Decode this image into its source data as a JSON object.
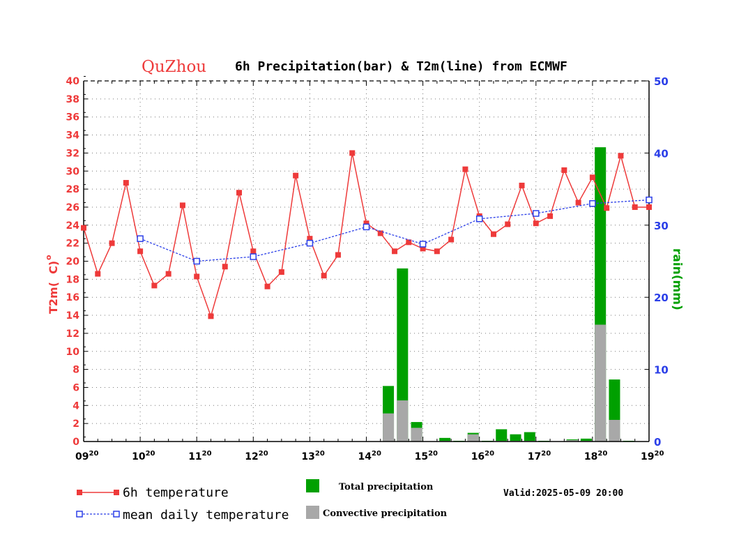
{
  "title": {
    "city": "QuZhou",
    "text": "6h Precipitation(bar) & T2m(line) from ECMWF"
  },
  "axes": {
    "left_label": "T2m(  C)",
    "right_label": "rain(mm)",
    "x_ticks": [
      {
        "day": "09",
        "hour": "20"
      },
      {
        "day": "10",
        "hour": "20"
      },
      {
        "day": "11",
        "hour": "20"
      },
      {
        "day": "12",
        "hour": "20"
      },
      {
        "day": "13",
        "hour": "20"
      },
      {
        "day": "14",
        "hour": "20"
      },
      {
        "day": "15",
        "hour": "20"
      },
      {
        "day": "16",
        "hour": "20"
      },
      {
        "day": "17",
        "hour": "20"
      },
      {
        "day": "18",
        "hour": "20"
      },
      {
        "day": "19",
        "hour": "20"
      }
    ]
  },
  "legend": {
    "temp6h": "6h temperature",
    "mean_daily": "mean daily temperature",
    "total_precip": "Total precipitation",
    "conv_precip": "Convective precipitation",
    "valid": "Valid:2025-05-09 20:00"
  },
  "colors": {
    "temp": "#ee3a3a",
    "mean": "#2b3fe8",
    "total": "#00a000",
    "conv": "#a8a8a8"
  },
  "chart_data": {
    "type": "bar+line",
    "title": "QuZhou 6h Precipitation(bar) & T2m(line) from ECMWF",
    "x_unit": "days since 09 20:00 (step 0.25 = 6h)",
    "xlim": [
      0,
      10
    ],
    "ylim_left": [
      0,
      40
    ],
    "ylim_right": [
      0,
      50
    ],
    "y_ticks_left": [
      0,
      2,
      4,
      6,
      8,
      10,
      12,
      14,
      16,
      18,
      20,
      22,
      24,
      26,
      28,
      30,
      32,
      34,
      36,
      38,
      40
    ],
    "y_ticks_right": [
      0,
      10,
      20,
      30,
      40,
      50
    ],
    "xlabel": "",
    "ylabel_left": "T2m(  C)",
    "ylabel_right": "rain(mm)",
    "series": [
      {
        "name": "6h temperature",
        "axis": "left",
        "x": [
          0,
          0.25,
          0.5,
          0.75,
          1,
          1.25,
          1.5,
          1.75,
          2,
          2.25,
          2.5,
          2.75,
          3,
          3.25,
          3.5,
          3.75,
          4,
          4.25,
          4.5,
          4.75,
          5,
          5.25,
          5.5,
          5.75,
          6,
          6.25,
          6.5,
          6.75,
          7,
          7.25,
          7.5,
          7.75,
          8,
          8.25,
          8.5,
          8.75,
          9,
          9.25,
          9.5,
          9.75,
          10
        ],
        "values": [
          23.7,
          18.6,
          22.0,
          28.7,
          21.1,
          17.3,
          18.6,
          26.2,
          18.3,
          13.9,
          19.4,
          27.6,
          21.1,
          17.2,
          18.8,
          29.5,
          22.5,
          18.4,
          20.7,
          32.0,
          24.2,
          23.1,
          21.1,
          22.1,
          21.4,
          21.1,
          22.4,
          30.2,
          25.0,
          23.0,
          24.1,
          28.4,
          24.2,
          25.0,
          30.1,
          26.5,
          29.3,
          25.9,
          31.7,
          26.0,
          26.0
        ]
      },
      {
        "name": "mean daily temperature",
        "axis": "left",
        "x": [
          1,
          2,
          3,
          4,
          5,
          6,
          7,
          8,
          9,
          10
        ],
        "values": [
          22.5,
          20.0,
          20.5,
          22.0,
          23.8,
          21.9,
          24.7,
          25.3,
          26.4,
          26.8
        ]
      },
      {
        "name": "Total precipitation",
        "axis": "right",
        "type": "bar",
        "x": [
          5.5,
          5.75,
          6.0,
          6.5,
          6.75,
          7.0,
          7.25,
          7.5,
          7.75,
          8.0,
          8.25,
          8.75,
          9.0,
          9.25,
          9.5,
          9.75
        ],
        "values": [
          7.7,
          24.0,
          2.7,
          0.5,
          0.1,
          1.2,
          0.1,
          1.7,
          1.0,
          1.3,
          0.1,
          0.3,
          0.4,
          40.8,
          8.6,
          0.1
        ]
      },
      {
        "name": "Convective precipitation",
        "axis": "right",
        "type": "bar",
        "x": [
          5.5,
          5.75,
          6.0,
          6.5,
          6.75,
          7.0,
          7.25,
          7.5,
          7.75,
          8.0,
          8.25,
          8.75,
          9.0,
          9.25,
          9.5,
          9.75
        ],
        "values": [
          3.9,
          5.7,
          1.9,
          0.1,
          0.0,
          1.0,
          0.0,
          0.1,
          0.1,
          0.1,
          0.0,
          0.2,
          0.1,
          16.2,
          3.0,
          0.0
        ]
      }
    ]
  }
}
